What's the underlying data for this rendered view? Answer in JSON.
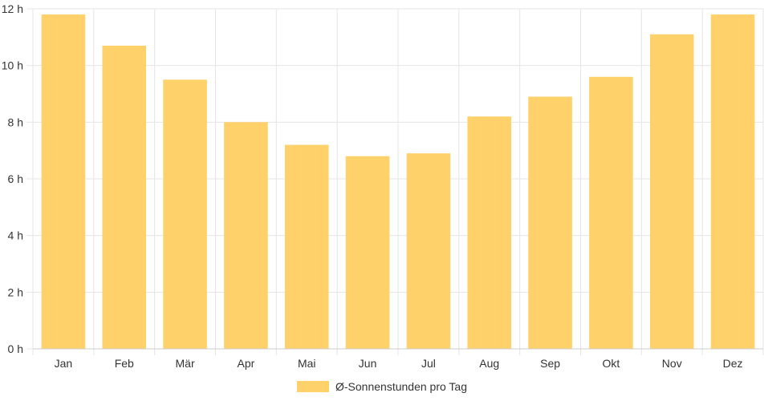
{
  "chart_data": {
    "type": "bar",
    "categories": [
      "Jan",
      "Feb",
      "Mär",
      "Apr",
      "Mai",
      "Jun",
      "Jul",
      "Aug",
      "Sep",
      "Okt",
      "Nov",
      "Dez"
    ],
    "series": [
      {
        "name": "Ø-Sonnenstunden pro Tag",
        "values": [
          11.8,
          10.7,
          9.5,
          8.0,
          7.2,
          6.8,
          6.9,
          8.2,
          8.9,
          9.6,
          11.1,
          11.8
        ],
        "color": "#fed16a"
      }
    ],
    "ylim": [
      0,
      12
    ],
    "yticks": [
      "0 h",
      "2 h",
      "4 h",
      "6 h",
      "8 h",
      "10 h",
      "12 h"
    ],
    "grid": true,
    "legend_position": "bottom"
  }
}
